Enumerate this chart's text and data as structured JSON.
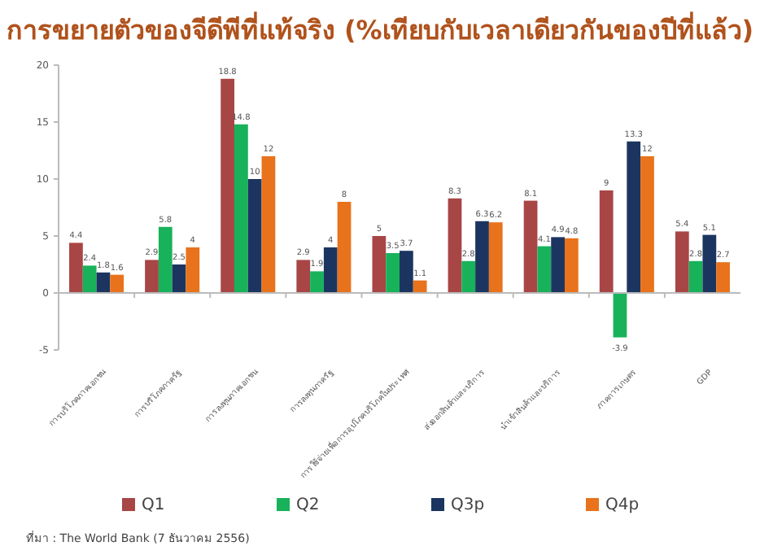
{
  "chart_data": {
    "type": "bar",
    "title": "การขยายตัวของจีดีพีที่แท้จริง (%เทียบกับเวลาเดียวกันของปีที่แล้ว)",
    "categories": [
      "การบริโภคภาคเอกชน",
      "การบริโภคภาครัฐ",
      "การลงทุนภาคเอกชน",
      "การลงทุนภาครัฐ",
      "การใช้จ่ายเพื่อการอุปโภคบริโภคในประเทศ",
      "ส่งออกสินค้าและบริการ",
      "นำเข้าสินค้าและบริการ",
      "ภาคการเกษตร",
      "GDP"
    ],
    "series": [
      {
        "name": "Q1",
        "color": "#a84646",
        "values": [
          4.4,
          2.9,
          18.8,
          2.9,
          5,
          8.3,
          8.1,
          9,
          5.4
        ]
      },
      {
        "name": "Q2",
        "color": "#18b25a",
        "values": [
          2.4,
          5.8,
          14.8,
          1.9,
          3.5,
          2.8,
          4.1,
          -3.9,
          2.8
        ]
      },
      {
        "name": "Q3p",
        "color": "#1c3560",
        "values": [
          1.8,
          2.5,
          10,
          4,
          3.7,
          6.3,
          4.9,
          13.3,
          5.1
        ]
      },
      {
        "name": "Q4p",
        "color": "#e8731c",
        "values": [
          1.6,
          4,
          12,
          8,
          1.1,
          6.2,
          4.8,
          12,
          2.7
        ]
      }
    ],
    "ylim": [
      -5,
      20
    ],
    "yticks": [
      -5,
      0,
      5,
      10,
      15,
      20
    ],
    "data_labels": true,
    "legend": "bottom",
    "annotations": [
      "ที่มา : The World Bank (7 ธันวาคม 2556)"
    ]
  }
}
